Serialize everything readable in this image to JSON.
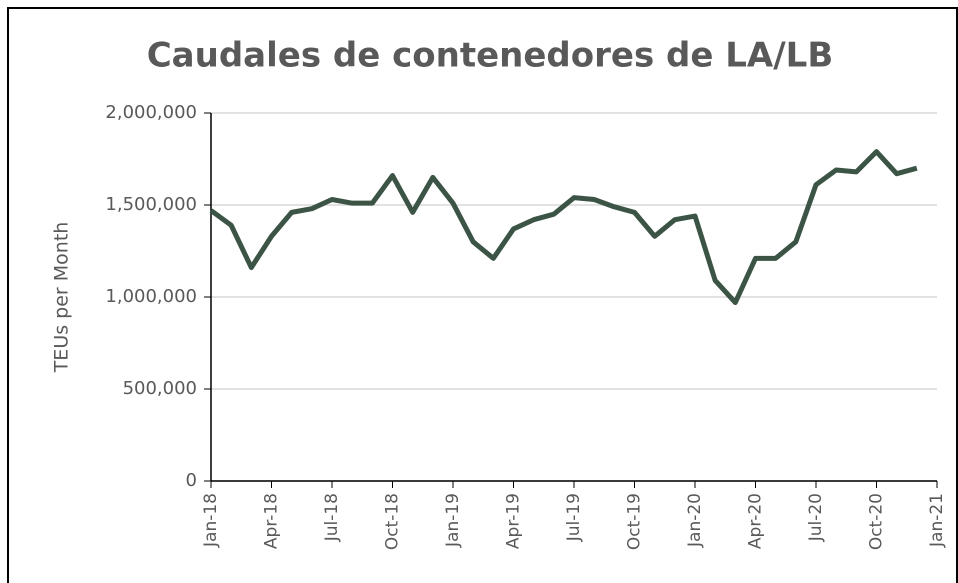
{
  "chart_data": {
    "type": "line",
    "title": "Caudales de contenedores de LA/LB",
    "y_label": "TEUs per Month",
    "categories": [
      "Jan-18",
      null,
      null,
      "Apr-18",
      null,
      null,
      "Jul-18",
      null,
      null,
      "Oct-18",
      null,
      null,
      "Jan-19",
      null,
      null,
      "Apr-19",
      null,
      null,
      "Jul-19",
      null,
      null,
      "Oct-19",
      null,
      null,
      "Jan-20",
      null,
      null,
      "Apr-20",
      null,
      null,
      "Jul-20",
      null,
      null,
      "Oct-20",
      null,
      null,
      "Jan-21"
    ],
    "series": [
      {
        "name": "TEUs",
        "color": "#3b5446",
        "values": [
          1470000,
          1390000,
          1160000,
          1330000,
          1460000,
          1480000,
          1530000,
          1510000,
          1510000,
          1660000,
          1460000,
          1650000,
          1510000,
          1300000,
          1210000,
          1370000,
          1420000,
          1450000,
          1540000,
          1530000,
          1490000,
          1460000,
          1330000,
          1420000,
          1440000,
          1090000,
          970000,
          1210000,
          1210000,
          1300000,
          1610000,
          1690000,
          1680000,
          1790000,
          1670000,
          1700000,
          null
        ]
      }
    ],
    "ylim": [
      0,
      2000000
    ],
    "yticks": [
      0,
      {
        "value": 500000,
        "label": "500,000"
      },
      {
        "value": 1000000,
        "label": "1,000,000"
      },
      {
        "value": 1500000,
        "label": "1,500,000"
      },
      {
        "value": 2000000,
        "label": "2,000,000"
      }
    ],
    "grid": true
  }
}
